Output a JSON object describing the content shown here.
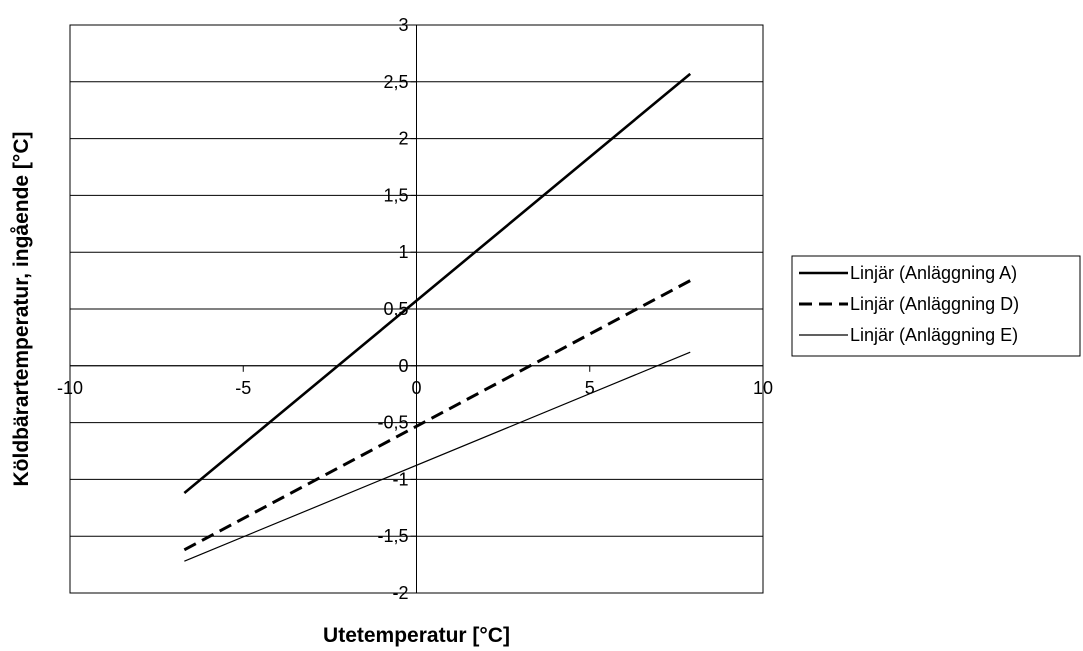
{
  "chart_data": {
    "type": "line",
    "xlabel": "Utetemperatur [°C]",
    "ylabel": "Köldbärartemperatur, ingående [°C]",
    "xlim": [
      -10,
      10
    ],
    "ylim": [
      -2,
      3
    ],
    "x_ticks": [
      -10,
      -5,
      0,
      5,
      10
    ],
    "y_ticks": [
      -2,
      -1.5,
      -1,
      -0.5,
      0,
      0.5,
      1,
      1.5,
      2,
      2.5,
      3
    ],
    "x_tick_labels": [
      "-10",
      "-5",
      "0",
      "5",
      "10"
    ],
    "y_tick_labels": [
      "-2",
      "-1,5",
      "-1",
      "-0,5",
      "0",
      "0,5",
      "1",
      "1,5",
      "2",
      "2,5",
      "3"
    ],
    "grid": "horizontal",
    "legend_position": "right",
    "series": [
      {
        "name": "Linjär (Anläggning A)",
        "style": "solid-thick",
        "x": [
          -6.7,
          7.9
        ],
        "y": [
          -1.12,
          2.57
        ]
      },
      {
        "name": "Linjär (Anläggning D)",
        "style": "dashed",
        "x": [
          -6.7,
          7.9
        ],
        "y": [
          -1.62,
          0.75
        ]
      },
      {
        "name": "Linjär (Anläggning E)",
        "style": "solid-thin",
        "x": [
          -6.7,
          7.9
        ],
        "y": [
          -1.72,
          0.12
        ]
      }
    ]
  }
}
